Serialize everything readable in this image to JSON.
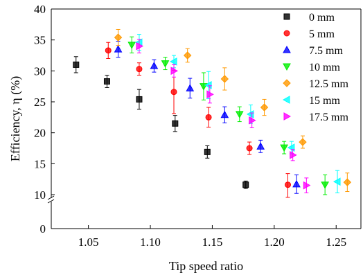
{
  "chart_data": {
    "type": "scatter",
    "xlabel": "Tip speed ratio",
    "ylabel": "Efficiency, η (%)",
    "xlim": [
      1.02,
      1.27
    ],
    "ylim": [
      0,
      40
    ],
    "axis_break": [
      1,
      10
    ],
    "x_ticks": [
      "1.05",
      "1.10",
      "1.15",
      "1.20",
      "1.25"
    ],
    "x_tick_values": [
      1.05,
      1.1,
      1.15,
      1.2,
      1.25
    ],
    "y_ticks": [
      "0",
      "10",
      "15",
      "20",
      "25",
      "30",
      "35",
      "40"
    ],
    "y_tick_values": [
      0,
      10,
      15,
      20,
      25,
      30,
      35,
      40
    ],
    "legend_position": "top-right",
    "grid": false,
    "series": [
      {
        "name": "0 mm",
        "color": "#000000",
        "marker": "square",
        "x": [
          1.04,
          1.065,
          1.091,
          1.12,
          1.146,
          1.177
        ],
        "y": [
          31.0,
          28.3,
          25.4,
          21.5,
          16.9,
          11.6
        ],
        "err": [
          1.3,
          1.0,
          1.6,
          1.3,
          1.0,
          0.6
        ]
      },
      {
        "name": "5 mm",
        "color": "#ff0000",
        "marker": "circle",
        "x": [
          1.066,
          1.091,
          1.119,
          1.147,
          1.18,
          1.211
        ],
        "y": [
          33.3,
          30.3,
          26.6,
          22.5,
          17.5,
          11.6
        ],
        "err": [
          1.3,
          1.0,
          3.5,
          1.6,
          1.0,
          1.8
        ]
      },
      {
        "name": "7.5 mm",
        "color": "#0000ff",
        "marker": "triangle-up",
        "x": [
          1.074,
          1.103,
          1.132,
          1.16,
          1.189,
          1.218
        ],
        "y": [
          33.5,
          30.8,
          27.2,
          22.9,
          17.8,
          11.7
        ],
        "err": [
          1.3,
          1.0,
          1.6,
          1.3,
          1.0,
          1.5
        ]
      },
      {
        "name": "10 mm",
        "color": "#00ee00",
        "marker": "triangle-down",
        "x": [
          1.085,
          1.112,
          1.143,
          1.172,
          1.208,
          1.241
        ],
        "y": [
          34.2,
          31.2,
          27.5,
          23.0,
          17.6,
          11.6
        ],
        "err": [
          1.3,
          1.0,
          2.2,
          1.2,
          1.0,
          1.6
        ]
      },
      {
        "name": "12.5 mm",
        "color": "#ff9900",
        "marker": "diamond",
        "x": [
          1.074,
          1.13,
          1.16,
          1.192,
          1.223,
          1.259
        ],
        "y": [
          35.4,
          32.5,
          28.7,
          24.1,
          18.5,
          12.0
        ],
        "err": [
          1.3,
          1.1,
          1.8,
          1.3,
          1.0,
          1.5
        ]
      },
      {
        "name": "15 mm",
        "color": "#00ffff",
        "marker": "triangle-left",
        "x": [
          1.091,
          1.119,
          1.147,
          1.181,
          1.214,
          1.251
        ],
        "y": [
          34.6,
          31.5,
          27.7,
          23.0,
          17.6,
          12.1
        ],
        "err": [
          1.3,
          1.0,
          2.2,
          1.5,
          1.0,
          1.8
        ]
      },
      {
        "name": "17.5 mm",
        "color": "#ff00ff",
        "marker": "triangle-right",
        "x": [
          1.091,
          1.119,
          1.148,
          1.182,
          1.215,
          1.226
        ],
        "y": [
          34.0,
          30.0,
          26.2,
          22.0,
          16.4,
          11.5
        ],
        "err": [
          1.1,
          1.0,
          1.4,
          1.2,
          0.9,
          1.2
        ]
      }
    ]
  }
}
